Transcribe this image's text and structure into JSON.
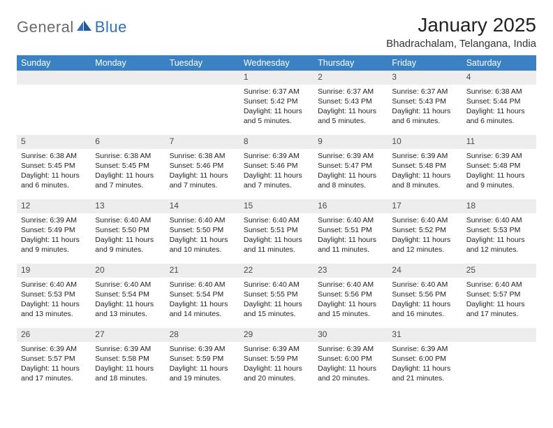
{
  "brand": {
    "part1": "General",
    "part2": "Blue"
  },
  "title": "January 2025",
  "location": "Bhadrachalam, Telangana, India",
  "colors": {
    "header_bg": "#3a82c4",
    "header_text": "#ffffff",
    "rule": "#2d72b8",
    "daynum_bg": "#ededed",
    "daynum_text": "#4a4a4a",
    "body_text": "#222222",
    "brand_gray": "#6a6a6a",
    "brand_blue": "#2d72b8",
    "page_bg": "#ffffff"
  },
  "fonts": {
    "title_pt": 28,
    "location_pt": 15,
    "dayheader_pt": 12.5,
    "daynum_pt": 12,
    "body_pt": 10.5
  },
  "day_headers": [
    "Sunday",
    "Monday",
    "Tuesday",
    "Wednesday",
    "Thursday",
    "Friday",
    "Saturday"
  ],
  "weeks": [
    [
      {
        "n": "",
        "sr": "",
        "ss": "",
        "dl": ""
      },
      {
        "n": "",
        "sr": "",
        "ss": "",
        "dl": ""
      },
      {
        "n": "",
        "sr": "",
        "ss": "",
        "dl": ""
      },
      {
        "n": "1",
        "sr": "6:37 AM",
        "ss": "5:42 PM",
        "dl": "11 hours and 5 minutes."
      },
      {
        "n": "2",
        "sr": "6:37 AM",
        "ss": "5:43 PM",
        "dl": "11 hours and 5 minutes."
      },
      {
        "n": "3",
        "sr": "6:37 AM",
        "ss": "5:43 PM",
        "dl": "11 hours and 6 minutes."
      },
      {
        "n": "4",
        "sr": "6:38 AM",
        "ss": "5:44 PM",
        "dl": "11 hours and 6 minutes."
      }
    ],
    [
      {
        "n": "5",
        "sr": "6:38 AM",
        "ss": "5:45 PM",
        "dl": "11 hours and 6 minutes."
      },
      {
        "n": "6",
        "sr": "6:38 AM",
        "ss": "5:45 PM",
        "dl": "11 hours and 7 minutes."
      },
      {
        "n": "7",
        "sr": "6:38 AM",
        "ss": "5:46 PM",
        "dl": "11 hours and 7 minutes."
      },
      {
        "n": "8",
        "sr": "6:39 AM",
        "ss": "5:46 PM",
        "dl": "11 hours and 7 minutes."
      },
      {
        "n": "9",
        "sr": "6:39 AM",
        "ss": "5:47 PM",
        "dl": "11 hours and 8 minutes."
      },
      {
        "n": "10",
        "sr": "6:39 AM",
        "ss": "5:48 PM",
        "dl": "11 hours and 8 minutes."
      },
      {
        "n": "11",
        "sr": "6:39 AM",
        "ss": "5:48 PM",
        "dl": "11 hours and 9 minutes."
      }
    ],
    [
      {
        "n": "12",
        "sr": "6:39 AM",
        "ss": "5:49 PM",
        "dl": "11 hours and 9 minutes."
      },
      {
        "n": "13",
        "sr": "6:40 AM",
        "ss": "5:50 PM",
        "dl": "11 hours and 9 minutes."
      },
      {
        "n": "14",
        "sr": "6:40 AM",
        "ss": "5:50 PM",
        "dl": "11 hours and 10 minutes."
      },
      {
        "n": "15",
        "sr": "6:40 AM",
        "ss": "5:51 PM",
        "dl": "11 hours and 11 minutes."
      },
      {
        "n": "16",
        "sr": "6:40 AM",
        "ss": "5:51 PM",
        "dl": "11 hours and 11 minutes."
      },
      {
        "n": "17",
        "sr": "6:40 AM",
        "ss": "5:52 PM",
        "dl": "11 hours and 12 minutes."
      },
      {
        "n": "18",
        "sr": "6:40 AM",
        "ss": "5:53 PM",
        "dl": "11 hours and 12 minutes."
      }
    ],
    [
      {
        "n": "19",
        "sr": "6:40 AM",
        "ss": "5:53 PM",
        "dl": "11 hours and 13 minutes."
      },
      {
        "n": "20",
        "sr": "6:40 AM",
        "ss": "5:54 PM",
        "dl": "11 hours and 13 minutes."
      },
      {
        "n": "21",
        "sr": "6:40 AM",
        "ss": "5:54 PM",
        "dl": "11 hours and 14 minutes."
      },
      {
        "n": "22",
        "sr": "6:40 AM",
        "ss": "5:55 PM",
        "dl": "11 hours and 15 minutes."
      },
      {
        "n": "23",
        "sr": "6:40 AM",
        "ss": "5:56 PM",
        "dl": "11 hours and 15 minutes."
      },
      {
        "n": "24",
        "sr": "6:40 AM",
        "ss": "5:56 PM",
        "dl": "11 hours and 16 minutes."
      },
      {
        "n": "25",
        "sr": "6:40 AM",
        "ss": "5:57 PM",
        "dl": "11 hours and 17 minutes."
      }
    ],
    [
      {
        "n": "26",
        "sr": "6:39 AM",
        "ss": "5:57 PM",
        "dl": "11 hours and 17 minutes."
      },
      {
        "n": "27",
        "sr": "6:39 AM",
        "ss": "5:58 PM",
        "dl": "11 hours and 18 minutes."
      },
      {
        "n": "28",
        "sr": "6:39 AM",
        "ss": "5:59 PM",
        "dl": "11 hours and 19 minutes."
      },
      {
        "n": "29",
        "sr": "6:39 AM",
        "ss": "5:59 PM",
        "dl": "11 hours and 20 minutes."
      },
      {
        "n": "30",
        "sr": "6:39 AM",
        "ss": "6:00 PM",
        "dl": "11 hours and 20 minutes."
      },
      {
        "n": "31",
        "sr": "6:39 AM",
        "ss": "6:00 PM",
        "dl": "11 hours and 21 minutes."
      },
      {
        "n": "",
        "sr": "",
        "ss": "",
        "dl": ""
      }
    ]
  ],
  "labels": {
    "sunrise": "Sunrise:",
    "sunset": "Sunset:",
    "daylight": "Daylight:"
  }
}
